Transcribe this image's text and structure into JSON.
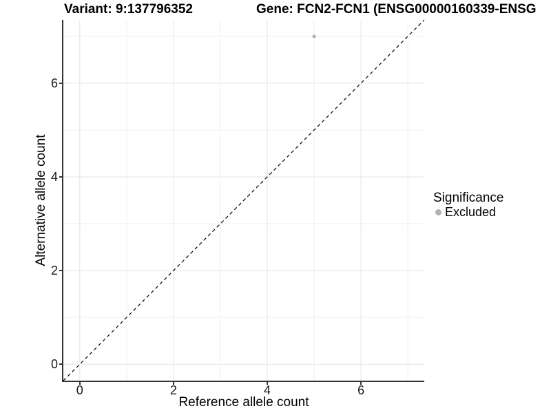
{
  "header": {
    "variant_title": "Variant: 9:137796352",
    "gene_title": "Gene: FCN2-FCN1 (ENSG00000160339-ENSG"
  },
  "legend": {
    "title": "Significance",
    "items": [
      {
        "label": "Excluded",
        "color": "#b3b3b3"
      }
    ]
  },
  "colors": {
    "axis_line": "#333333",
    "grid_major": "#e4e4e4",
    "grid_minor": "#efefef",
    "identity_line": "#000000",
    "tick_label": "#1a1a1a"
  },
  "chart_data": {
    "type": "scatter",
    "title_left": "Variant: 9:137796352",
    "title_right": "Gene: FCN2-FCN1 (ENSG00000160339-ENSG",
    "xlabel": "Reference allele count",
    "ylabel": "Alternative allele count",
    "xlim": [
      -0.35,
      7.35
    ],
    "ylim": [
      -0.35,
      7.35
    ],
    "x_major_ticks": [
      0,
      2,
      4,
      6
    ],
    "x_minor_ticks": [
      1,
      3,
      5,
      7
    ],
    "y_major_ticks": [
      0,
      2,
      4,
      6
    ],
    "y_minor_ticks": [
      1,
      3,
      5,
      7
    ],
    "grid": true,
    "legend_position": "right",
    "reference_line": {
      "type": "identity y=x",
      "style": "dashed",
      "color": "#000000"
    },
    "series": [
      {
        "name": "Excluded",
        "color": "#b3b3b3",
        "points": [
          {
            "x": 5,
            "y": 7
          }
        ]
      }
    ]
  }
}
